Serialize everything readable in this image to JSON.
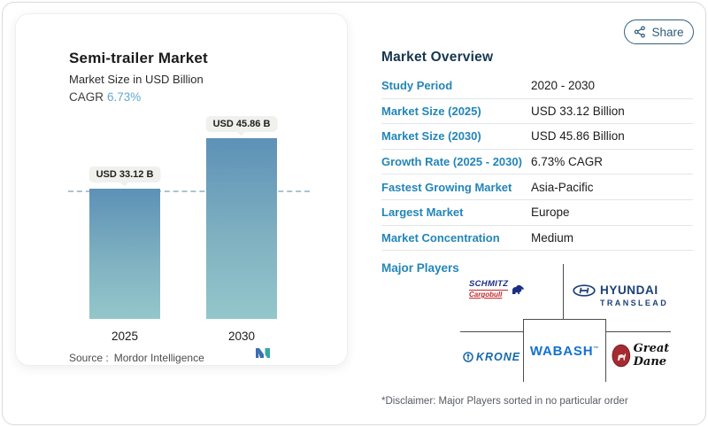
{
  "chart_card": {
    "title": "Semi-trailer Market",
    "subtitle": "Market Size in USD Billion",
    "cagr_label": "CAGR",
    "cagr_value": "6.73%",
    "source_label": "Source :",
    "source_value": "Mordor Intelligence"
  },
  "chart_data": {
    "type": "bar",
    "title": "Semi-trailer Market",
    "subtitle": "Market Size in USD Billion",
    "unit": "USD Billion",
    "categories": [
      "2025",
      "2030"
    ],
    "values": [
      33.12,
      45.86
    ],
    "value_labels": [
      "USD 33.12 B",
      "USD 45.86 B"
    ],
    "cagr_percent": 6.73,
    "reference_line": {
      "style": "dashed",
      "at_value": 33.12
    },
    "ylim": [
      0,
      45.86
    ],
    "grid": false,
    "legend": "none"
  },
  "share": {
    "label": "Share",
    "icon": "share-nodes-icon"
  },
  "overview": {
    "title": "Market Overview",
    "rows": [
      {
        "label": "Study Period",
        "value": "2020 - 2030"
      },
      {
        "label": "Market Size (2025)",
        "value": "USD 33.12 Billion"
      },
      {
        "label": "Market Size (2030)",
        "value": "USD 45.86 Billion"
      },
      {
        "label": "Growth Rate (2025 - 2030)",
        "value": "6.73% CAGR"
      },
      {
        "label": "Fastest Growing Market",
        "value": "Asia-Pacific"
      },
      {
        "label": "Largest Market",
        "value": "Europe"
      },
      {
        "label": "Market Concentration",
        "value": "Medium"
      }
    ],
    "major_players_label": "Major Players",
    "players": {
      "schmitz": {
        "line1": "SCHMITZ",
        "line2": "Cargobull"
      },
      "hyundai": {
        "name": "HYUNDAI",
        "sub": "TRANSLEAD"
      },
      "krone": {
        "name": "KRONE"
      },
      "wabash": {
        "name": "WABASH"
      },
      "great_dane": {
        "name": "Great Dane"
      }
    },
    "disclaimer": "*Disclaimer: Major Players sorted in no particular order"
  },
  "colors": {
    "label_blue": "#2385b8",
    "cagr_blue": "#61a9cf",
    "bar_gradient_top": "#5d91b6",
    "bar_gradient_bottom": "#93c7cb",
    "dashed_line": "#a9c4d3",
    "navy_heading": "#143750",
    "share_outline": "#33617e",
    "badge_bg": "#f0f1ec",
    "wabash_blue": "#1471d1",
    "hyundai_navy": "#1c4077",
    "schmitz_blue": "#1c2d84",
    "schmitz_red": "#c3272b",
    "krone_blue": "#1568a9",
    "great_dane_red": "#a62b30"
  }
}
